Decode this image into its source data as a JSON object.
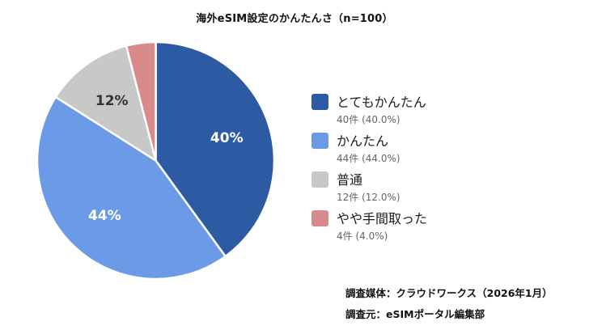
{
  "title": "海外eSIM設定のかんたんさ（n=100）",
  "chart_data": {
    "type": "pie",
    "title": "海外eSIM設定のかんたんさ（n=100）",
    "categories": [
      "とてもかんたん",
      "かんたん",
      "普通",
      "やや手間取った"
    ],
    "values": [
      40,
      44,
      12,
      4
    ],
    "counts": [
      40,
      44,
      12,
      4
    ],
    "percent_labels": [
      "40%",
      "44%",
      "12%",
      ""
    ],
    "colors": [
      "#2d5ba3",
      "#6b9ae6",
      "#c8c8c8",
      "#d98a8a"
    ],
    "label_colors": [
      "#ffffff",
      "#ffffff",
      "#333333",
      "#ffffff"
    ],
    "start_angle_deg": 0,
    "direction": "clockwise",
    "legend_position": "right",
    "n": 100
  },
  "legend": {
    "items": [
      {
        "label": "とてもかんたん",
        "sub": "40件 (40.0%)",
        "color": "#2d5ba3"
      },
      {
        "label": "かんたん",
        "sub": "44件 (44.0%)",
        "color": "#6b9ae6"
      },
      {
        "label": "普通",
        "sub": "12件 (12.0%)",
        "color": "#c8c8c8"
      },
      {
        "label": "やや手間取った",
        "sub": "4件 (4.0%)",
        "color": "#d98a8a"
      }
    ]
  },
  "source": {
    "line1": "調査媒体：クラウドワークス（2026年1月）",
    "line2": "調査元：eSIMポータル編集部"
  }
}
